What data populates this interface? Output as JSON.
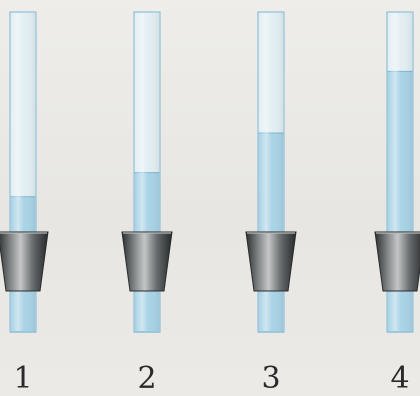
{
  "tubes": [
    {
      "label": "1",
      "liquid_level": 0.16
    },
    {
      "label": "2",
      "liquid_level": 0.27
    },
    {
      "label": "3",
      "liquid_level": 0.45
    },
    {
      "label": "4",
      "liquid_level": 0.73
    }
  ],
  "colors": {
    "liquid": "#a9d3e6",
    "liquid_edge": "#7fb6d0",
    "tube_empty": "#e3eef3",
    "tube_outline": "#8fc0d6",
    "stopper_light": "#a3a5a6",
    "stopper_dark": "#3c3f41",
    "background": "#ebeae6"
  }
}
